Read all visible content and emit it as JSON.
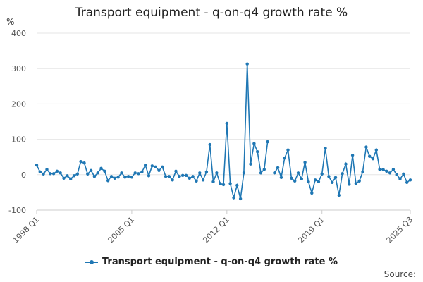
{
  "chart_data": {
    "type": "line",
    "title": "Transport equipment - q-on-q4 growth rate %",
    "ylabel": "%",
    "ylim": [
      -100,
      400
    ],
    "yticks": [
      400,
      300,
      200,
      100,
      0,
      -100
    ],
    "xtick_labels": [
      "1998 Q1",
      "2005 Q1",
      "2012 Q1",
      "2019 Q1",
      "2025 Q3"
    ],
    "xtick_indices": [
      0,
      28,
      56,
      84,
      110
    ],
    "grid": true,
    "color": "#1f77b4",
    "series": [
      {
        "name": "Transport equipment - q-on-q4 growth rate %",
        "values": [
          27,
          8,
          2,
          15,
          3,
          3,
          10,
          5,
          -10,
          -3,
          -12,
          -3,
          2,
          37,
          33,
          2,
          12,
          -5,
          5,
          18,
          10,
          -17,
          -5,
          -10,
          -7,
          5,
          -7,
          -5,
          -7,
          5,
          3,
          8,
          27,
          -3,
          25,
          22,
          12,
          22,
          -5,
          -5,
          -15,
          10,
          -5,
          -2,
          -2,
          -10,
          -5,
          -18,
          5,
          -15,
          8,
          85,
          -20,
          5,
          -25,
          -28,
          145,
          -25,
          -65,
          -30,
          -68,
          5,
          313,
          30,
          88,
          65,
          5,
          15,
          93,
          null,
          5,
          20,
          -8,
          47,
          70,
          -10,
          -18,
          5,
          -12,
          35,
          -20,
          -52,
          -15,
          -20,
          2,
          75,
          -5,
          -22,
          -8,
          -58,
          3,
          30,
          -27,
          55,
          -25,
          -18,
          8,
          78,
          52,
          45,
          70,
          15,
          15,
          10,
          5,
          15,
          0,
          -12,
          2,
          -22,
          -15
        ]
      }
    ],
    "legend": "bottom-center"
  },
  "source_label": "Source:"
}
